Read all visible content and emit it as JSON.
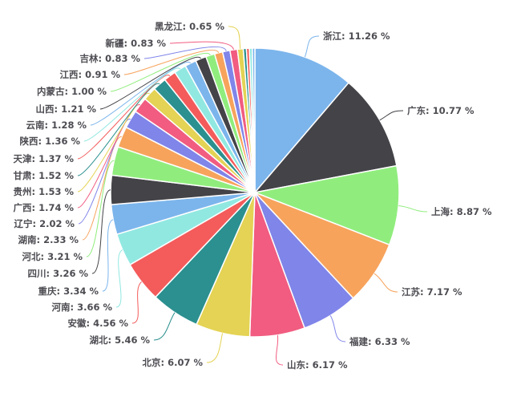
{
  "chart_data": {
    "type": "pie",
    "title": "",
    "legend": "none",
    "background": "#ffffff",
    "label_format": "{name}: {value} %",
    "label_text_color": "#4c4c52",
    "slice_border_color": "#ffffff",
    "palette": [
      "#7cb5ec",
      "#434348",
      "#90ed7d",
      "#f7a35c",
      "#8085e9",
      "#f15c80",
      "#e4d354",
      "#2b908f",
      "#f45b5b",
      "#91e8e1"
    ],
    "slices": [
      {
        "name": "浙江",
        "value": 11.26,
        "color": "#7cb5ec"
      },
      {
        "name": "广东",
        "value": 10.77,
        "color": "#434348"
      },
      {
        "name": "上海",
        "value": 8.87,
        "color": "#90ed7d"
      },
      {
        "name": "江苏",
        "value": 7.17,
        "color": "#f7a35c"
      },
      {
        "name": "福建",
        "value": 6.33,
        "color": "#8085e9"
      },
      {
        "name": "山东",
        "value": 6.17,
        "color": "#f15c80"
      },
      {
        "name": "北京",
        "value": 6.07,
        "color": "#e4d354"
      },
      {
        "name": "湖北",
        "value": 5.46,
        "color": "#2b908f"
      },
      {
        "name": "安徽",
        "value": 4.56,
        "color": "#f45b5b"
      },
      {
        "name": "河南",
        "value": 3.66,
        "color": "#91e8e1"
      },
      {
        "name": "重庆",
        "value": 3.34,
        "color": "#7cb5ec"
      },
      {
        "name": "四川",
        "value": 3.26,
        "color": "#434348"
      },
      {
        "name": "河北",
        "value": 3.21,
        "color": "#90ed7d"
      },
      {
        "name": "湖南",
        "value": 2.33,
        "color": "#f7a35c"
      },
      {
        "name": "辽宁",
        "value": 2.02,
        "color": "#8085e9"
      },
      {
        "name": "广西",
        "value": 1.74,
        "color": "#f15c80"
      },
      {
        "name": "贵州",
        "value": 1.53,
        "color": "#e4d354"
      },
      {
        "name": "甘肃",
        "value": 1.52,
        "color": "#2b908f"
      },
      {
        "name": "天津",
        "value": 1.37,
        "color": "#f45b5b"
      },
      {
        "name": "陕西",
        "value": 1.36,
        "color": "#91e8e1"
      },
      {
        "name": "云南",
        "value": 1.28,
        "color": "#7cb5ec"
      },
      {
        "name": "山西",
        "value": 1.21,
        "color": "#434348"
      },
      {
        "name": "内蒙古",
        "value": 1.0,
        "color": "#90ed7d"
      },
      {
        "name": "江西",
        "value": 0.91,
        "color": "#f7a35c"
      },
      {
        "name": "吉林",
        "value": 0.83,
        "color": "#8085e9"
      },
      {
        "name": "新疆",
        "value": 0.83,
        "color": "#f15c80"
      },
      {
        "name": "黑龙江",
        "value": 0.65,
        "color": "#e4d354"
      }
    ],
    "unlabeled_remainder_pct": 1.29
  }
}
